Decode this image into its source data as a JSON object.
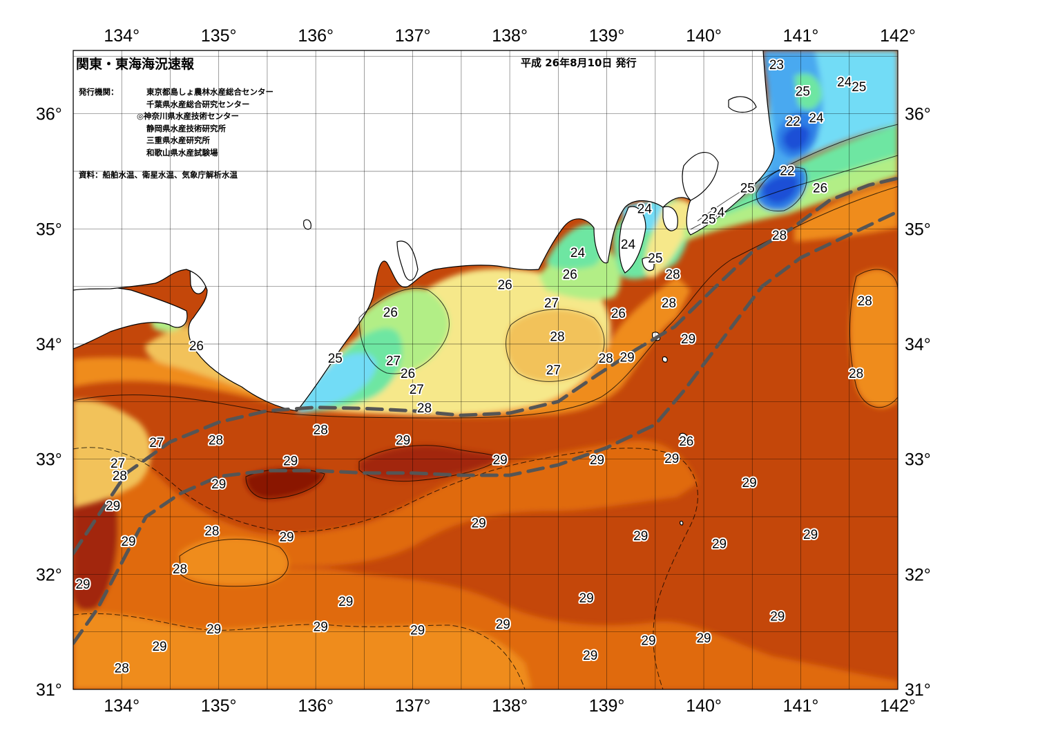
{
  "map": {
    "title": "関東・東海海況速報",
    "issue_date": "平成 26年8月10日 発行",
    "agencies_label": "発行機関：",
    "agencies": [
      "東京都島しょ農林水産総合センター",
      "千葉県水産総合研究センター",
      "◎神奈川県水産技術センター",
      "静岡県水産技術研究所",
      "三重県水産研究所",
      "和歌山県水産試験場"
    ],
    "source": "資料：船舶水温、衛星水温、気象庁解析水温",
    "lon_ticks": [
      "134°",
      "135°",
      "136°",
      "137°",
      "138°",
      "139°",
      "140°",
      "141°",
      "142°"
    ],
    "lat_ticks": [
      "31°",
      "32°",
      "33°",
      "34°",
      "35°",
      "36°"
    ],
    "extent": {
      "lon_min": 133.5,
      "lon_max": 142.0,
      "lat_min": 31.0,
      "lat_max": 36.55
    },
    "temperature_colors": {
      "21": "#1a4fd6",
      "22": "#2f7fe6",
      "23": "#4aa9f0",
      "24": "#72dcf6",
      "25": "#6ee6a2",
      "26": "#b2ee86",
      "27": "#f6e88a",
      "28": "#f2c25a",
      "28.5": "#ef8c1e",
      "29": "#e06a0e",
      "29.5": "#c4470a",
      "30": "#a2280a",
      "30.5": "#8a1606"
    },
    "contour_labels": [
      {
        "value": "23",
        "lon": 140.75,
        "lat": 36.42
      },
      {
        "value": "24",
        "lon": 141.45,
        "lat": 36.27
      },
      {
        "value": "25",
        "lon": 141.6,
        "lat": 36.23
      },
      {
        "value": "25",
        "lon": 141.02,
        "lat": 36.19
      },
      {
        "value": "22",
        "lon": 140.92,
        "lat": 35.93
      },
      {
        "value": "24",
        "lon": 141.16,
        "lat": 35.96
      },
      {
        "value": "22",
        "lon": 140.86,
        "lat": 35.5
      },
      {
        "value": "25",
        "lon": 140.45,
        "lat": 35.35
      },
      {
        "value": "26",
        "lon": 141.2,
        "lat": 35.35
      },
      {
        "value": "24",
        "lon": 139.39,
        "lat": 35.17
      },
      {
        "value": "24",
        "lon": 140.14,
        "lat": 35.14
      },
      {
        "value": "25",
        "lon": 140.05,
        "lat": 35.08
      },
      {
        "value": "28",
        "lon": 140.78,
        "lat": 34.94
      },
      {
        "value": "24",
        "lon": 139.22,
        "lat": 34.86
      },
      {
        "value": "24",
        "lon": 138.7,
        "lat": 34.79
      },
      {
        "value": "25",
        "lon": 139.5,
        "lat": 34.74
      },
      {
        "value": "28",
        "lon": 139.68,
        "lat": 34.6
      },
      {
        "value": "26",
        "lon": 138.62,
        "lat": 34.6
      },
      {
        "value": "26",
        "lon": 137.95,
        "lat": 34.51
      },
      {
        "value": "27",
        "lon": 138.43,
        "lat": 34.35
      },
      {
        "value": "28",
        "lon": 139.64,
        "lat": 34.35
      },
      {
        "value": "28",
        "lon": 141.66,
        "lat": 34.37
      },
      {
        "value": "26",
        "lon": 136.77,
        "lat": 34.27
      },
      {
        "value": "26",
        "lon": 139.12,
        "lat": 34.26
      },
      {
        "value": "28",
        "lon": 138.49,
        "lat": 34.06
      },
      {
        "value": "29",
        "lon": 139.84,
        "lat": 34.04
      },
      {
        "value": "26",
        "lon": 134.77,
        "lat": 33.98
      },
      {
        "value": "25",
        "lon": 136.2,
        "lat": 33.87
      },
      {
        "value": "27",
        "lon": 136.8,
        "lat": 33.85
      },
      {
        "value": "28",
        "lon": 138.99,
        "lat": 33.87
      },
      {
        "value": "29",
        "lon": 139.21,
        "lat": 33.88
      },
      {
        "value": "27",
        "lon": 138.45,
        "lat": 33.77
      },
      {
        "value": "26",
        "lon": 136.95,
        "lat": 33.74
      },
      {
        "value": "28",
        "lon": 141.57,
        "lat": 33.74
      },
      {
        "value": "27",
        "lon": 137.04,
        "lat": 33.6
      },
      {
        "value": "28",
        "lon": 137.12,
        "lat": 33.44
      },
      {
        "value": "28",
        "lon": 136.05,
        "lat": 33.25
      },
      {
        "value": "26",
        "lon": 139.82,
        "lat": 33.15
      },
      {
        "value": "27",
        "lon": 134.36,
        "lat": 33.14
      },
      {
        "value": "28",
        "lon": 134.97,
        "lat": 33.16
      },
      {
        "value": "29",
        "lon": 136.9,
        "lat": 33.16
      },
      {
        "value": "29",
        "lon": 135.74,
        "lat": 32.98
      },
      {
        "value": "29",
        "lon": 137.9,
        "lat": 32.99
      },
      {
        "value": "29",
        "lon": 138.9,
        "lat": 32.99
      },
      {
        "value": "29",
        "lon": 139.67,
        "lat": 33.0
      },
      {
        "value": "27",
        "lon": 133.96,
        "lat": 32.96
      },
      {
        "value": "28",
        "lon": 133.98,
        "lat": 32.85
      },
      {
        "value": "29",
        "lon": 135.0,
        "lat": 32.78
      },
      {
        "value": "29",
        "lon": 140.47,
        "lat": 32.79
      },
      {
        "value": "29",
        "lon": 133.91,
        "lat": 32.59
      },
      {
        "value": "29",
        "lon": 137.68,
        "lat": 32.44
      },
      {
        "value": "28",
        "lon": 134.93,
        "lat": 32.37
      },
      {
        "value": "29",
        "lon": 135.7,
        "lat": 32.32
      },
      {
        "value": "29",
        "lon": 139.35,
        "lat": 32.33
      },
      {
        "value": "29",
        "lon": 141.1,
        "lat": 32.34
      },
      {
        "value": "29",
        "lon": 134.07,
        "lat": 32.28
      },
      {
        "value": "29",
        "lon": 140.16,
        "lat": 32.26
      },
      {
        "value": "28",
        "lon": 134.6,
        "lat": 32.04
      },
      {
        "value": "29",
        "lon": 133.6,
        "lat": 31.91
      },
      {
        "value": "29",
        "lon": 138.79,
        "lat": 31.79
      },
      {
        "value": "29",
        "lon": 136.31,
        "lat": 31.76
      },
      {
        "value": "29",
        "lon": 140.76,
        "lat": 31.63
      },
      {
        "value": "29",
        "lon": 137.93,
        "lat": 31.56
      },
      {
        "value": "29",
        "lon": 136.05,
        "lat": 31.54
      },
      {
        "value": "29",
        "lon": 134.95,
        "lat": 31.52
      },
      {
        "value": "29",
        "lon": 137.05,
        "lat": 31.51
      },
      {
        "value": "29",
        "lon": 139.43,
        "lat": 31.42
      },
      {
        "value": "29",
        "lon": 140.0,
        "lat": 31.44
      },
      {
        "value": "29",
        "lon": 134.39,
        "lat": 31.37
      },
      {
        "value": "29",
        "lon": 138.83,
        "lat": 31.29
      },
      {
        "value": "28",
        "lon": 134.0,
        "lat": 31.18
      }
    ],
    "kuroshio_axis_lines": [
      [
        [
          133.5,
          31.4
        ],
        [
          133.75,
          31.7
        ],
        [
          134.0,
          32.1
        ],
        [
          134.25,
          32.5
        ],
        [
          134.6,
          32.7
        ],
        [
          135.0,
          32.85
        ],
        [
          135.5,
          32.9
        ],
        [
          136.0,
          32.9
        ],
        [
          136.5,
          32.88
        ],
        [
          137.0,
          32.88
        ],
        [
          137.5,
          32.86
        ],
        [
          138.0,
          32.86
        ],
        [
          138.5,
          32.95
        ],
        [
          139.0,
          33.1
        ],
        [
          139.5,
          33.3
        ],
        [
          139.8,
          33.6
        ],
        [
          140.2,
          34.05
        ],
        [
          140.6,
          34.5
        ],
        [
          141.0,
          34.75
        ],
        [
          141.5,
          34.95
        ],
        [
          142.0,
          35.15
        ]
      ],
      [
        [
          133.5,
          32.18
        ],
        [
          133.75,
          32.5
        ],
        [
          134.05,
          32.88
        ],
        [
          134.5,
          33.15
        ],
        [
          135.0,
          33.32
        ],
        [
          135.5,
          33.42
        ],
        [
          136.0,
          33.45
        ],
        [
          136.5,
          33.44
        ],
        [
          137.0,
          33.42
        ],
        [
          137.5,
          33.38
        ],
        [
          138.0,
          33.4
        ],
        [
          138.5,
          33.5
        ],
        [
          138.9,
          33.73
        ],
        [
          139.3,
          33.95
        ],
        [
          139.7,
          34.15
        ],
        [
          140.1,
          34.48
        ],
        [
          140.5,
          34.8
        ],
        [
          140.9,
          35.0
        ],
        [
          141.3,
          35.25
        ],
        [
          141.7,
          35.38
        ],
        [
          142.0,
          35.44
        ]
      ]
    ]
  }
}
